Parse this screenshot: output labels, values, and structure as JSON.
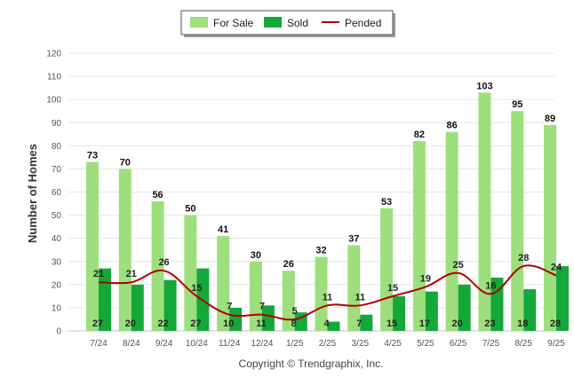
{
  "chart_data": {
    "type": "bar",
    "title": "",
    "xlabel": "",
    "ylabel": "Number of Homes",
    "ylim": [
      0,
      120
    ],
    "yticks": [
      0,
      10,
      20,
      30,
      40,
      50,
      60,
      70,
      80,
      90,
      100,
      110,
      120
    ],
    "grid": true,
    "legend": "top-center",
    "categories": [
      "7/24",
      "8/24",
      "9/24",
      "10/24",
      "11/24",
      "12/24",
      "1/25",
      "2/25",
      "3/25",
      "4/25",
      "5/25",
      "6/25",
      "7/25",
      "8/25",
      "9/25"
    ],
    "series": [
      {
        "name": "For Sale",
        "type": "bar",
        "color": "#9ddf7c",
        "values": [
          73,
          70,
          56,
          50,
          41,
          30,
          26,
          32,
          37,
          53,
          82,
          86,
          103,
          95,
          89
        ]
      },
      {
        "name": "Sold",
        "type": "bar",
        "color": "#14a83a",
        "values": [
          27,
          20,
          22,
          27,
          10,
          11,
          8,
          4,
          7,
          15,
          17,
          20,
          23,
          18,
          28
        ]
      },
      {
        "name": "Pended",
        "type": "line",
        "color": "#b00000",
        "values": [
          21,
          21,
          26,
          15,
          7,
          7,
          5,
          11,
          11,
          15,
          19,
          25,
          16,
          28,
          24
        ]
      }
    ]
  },
  "footer": {
    "copyright": "Copyright © Trendgraphix, Inc."
  }
}
